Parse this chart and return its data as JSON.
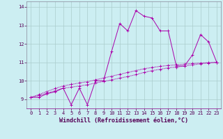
{
  "xlabel": "Windchill (Refroidissement éolien,°C)",
  "background_color": "#cceef2",
  "line_color": "#aa00aa",
  "ylim": [
    8.5,
    14.3
  ],
  "xlim": [
    -0.5,
    23.5
  ],
  "yticks": [
    9,
    10,
    11,
    12,
    13,
    14
  ],
  "xticks": [
    0,
    1,
    2,
    3,
    4,
    5,
    6,
    7,
    8,
    9,
    10,
    11,
    12,
    13,
    14,
    15,
    16,
    17,
    18,
    19,
    20,
    21,
    22,
    23
  ],
  "series1_x": [
    0,
    1,
    2,
    3,
    4,
    5,
    6,
    7,
    8,
    9,
    10,
    11,
    12,
    13,
    14,
    15,
    16,
    17,
    18,
    19,
    20,
    21,
    22,
    23
  ],
  "series1_y": [
    9.1,
    9.1,
    9.3,
    9.4,
    9.6,
    8.7,
    9.6,
    8.7,
    10.0,
    10.0,
    11.6,
    13.1,
    12.7,
    13.8,
    13.5,
    13.4,
    12.7,
    12.7,
    10.8,
    10.8,
    11.4,
    12.5,
    12.1,
    11.0
  ],
  "series2_x": [
    0,
    1,
    2,
    3,
    4,
    5,
    6,
    7,
    8,
    9,
    10,
    11,
    12,
    13,
    14,
    15,
    16,
    17,
    18,
    19,
    20,
    21,
    22,
    23
  ],
  "series2_y": [
    9.1,
    9.2,
    9.32,
    9.46,
    9.6,
    9.65,
    9.72,
    9.78,
    9.88,
    9.96,
    10.05,
    10.14,
    10.23,
    10.33,
    10.45,
    10.55,
    10.62,
    10.7,
    10.74,
    10.8,
    10.86,
    10.92,
    10.96,
    11.0
  ],
  "series3_x": [
    0,
    1,
    2,
    3,
    4,
    5,
    6,
    7,
    8,
    9,
    10,
    11,
    12,
    13,
    14,
    15,
    16,
    17,
    18,
    19,
    20,
    21,
    22,
    23
  ],
  "series3_y": [
    9.1,
    9.25,
    9.42,
    9.58,
    9.72,
    9.8,
    9.88,
    9.95,
    10.05,
    10.15,
    10.25,
    10.35,
    10.45,
    10.55,
    10.65,
    10.72,
    10.78,
    10.83,
    10.86,
    10.9,
    10.93,
    10.96,
    10.98,
    11.0
  ],
  "grid_color": "#aacccc",
  "marker": "+",
  "marker_size": 3,
  "linewidth": 0.7,
  "tick_fontsize": 5.0,
  "xlabel_fontsize": 6.0,
  "xlabel_fontweight": "bold"
}
